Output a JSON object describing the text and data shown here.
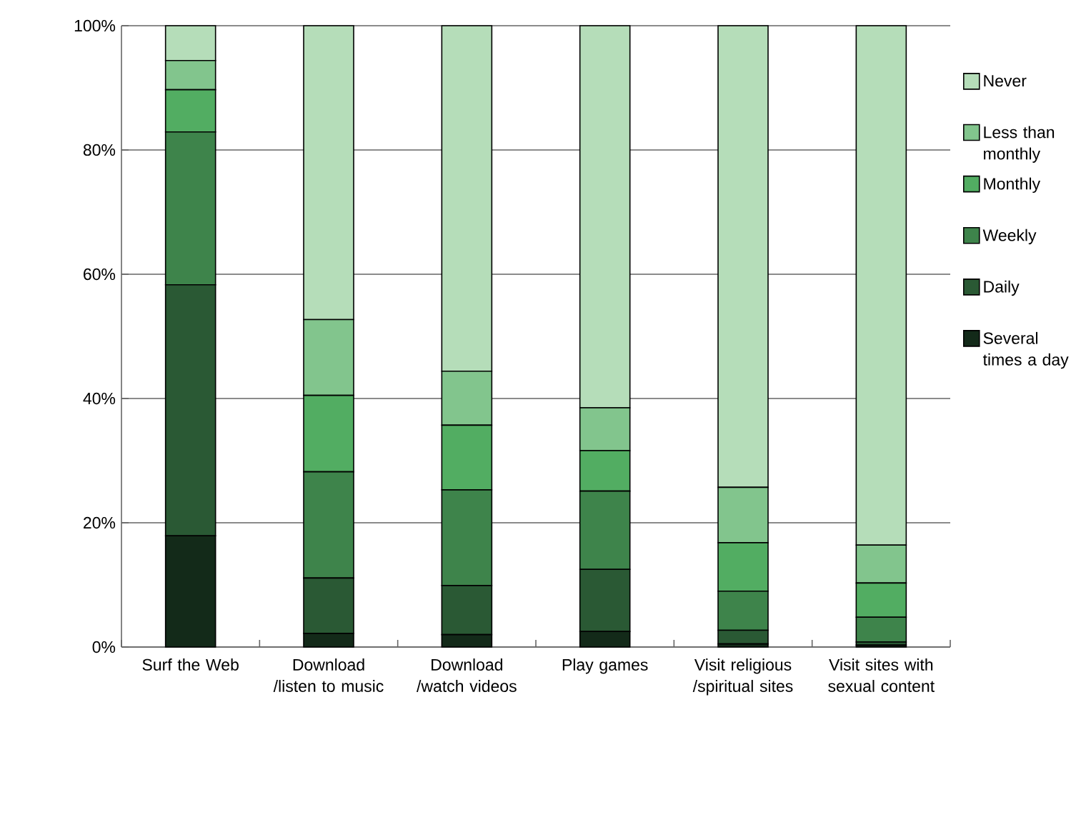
{
  "chart_data": {
    "type": "bar",
    "stacked": true,
    "categories": [
      "Surf the Web",
      "Download /listen to music",
      "Download /watch videos",
      "Play games",
      "Visit religious /spiritual sites",
      "Visit sites with sexual content"
    ],
    "series": [
      {
        "name": "Several times a day",
        "color": "#132a19",
        "values": [
          17.9,
          2.2,
          2.0,
          2.5,
          0.5,
          0.3
        ]
      },
      {
        "name": "Daily",
        "color": "#2a5934",
        "values": [
          40.4,
          8.9,
          7.9,
          10.0,
          2.2,
          0.5
        ]
      },
      {
        "name": "Weekly",
        "color": "#3e844b",
        "values": [
          24.6,
          17.1,
          15.4,
          12.6,
          6.3,
          4.0
        ]
      },
      {
        "name": "Monthly",
        "color": "#52ad62",
        "values": [
          6.8,
          12.3,
          10.4,
          6.5,
          7.8,
          5.5
        ]
      },
      {
        "name": "Less than monthly",
        "color": "#82c58d",
        "values": [
          4.7,
          12.2,
          8.7,
          6.9,
          8.9,
          6.1
        ]
      },
      {
        "name": "Never",
        "color": "#b5ddb9",
        "values": [
          5.6,
          47.3,
          55.6,
          61.5,
          74.3,
          83.6
        ]
      }
    ],
    "ylim": [
      0,
      100
    ],
    "yticks": [
      {
        "value": 0,
        "label": "0%"
      },
      {
        "value": 20,
        "label": "20%"
      },
      {
        "value": 40,
        "label": "40%"
      },
      {
        "value": 60,
        "label": "60%"
      },
      {
        "value": 80,
        "label": "80%"
      },
      {
        "value": 100,
        "label": "100%"
      }
    ],
    "grid": "y",
    "legend": "right"
  }
}
